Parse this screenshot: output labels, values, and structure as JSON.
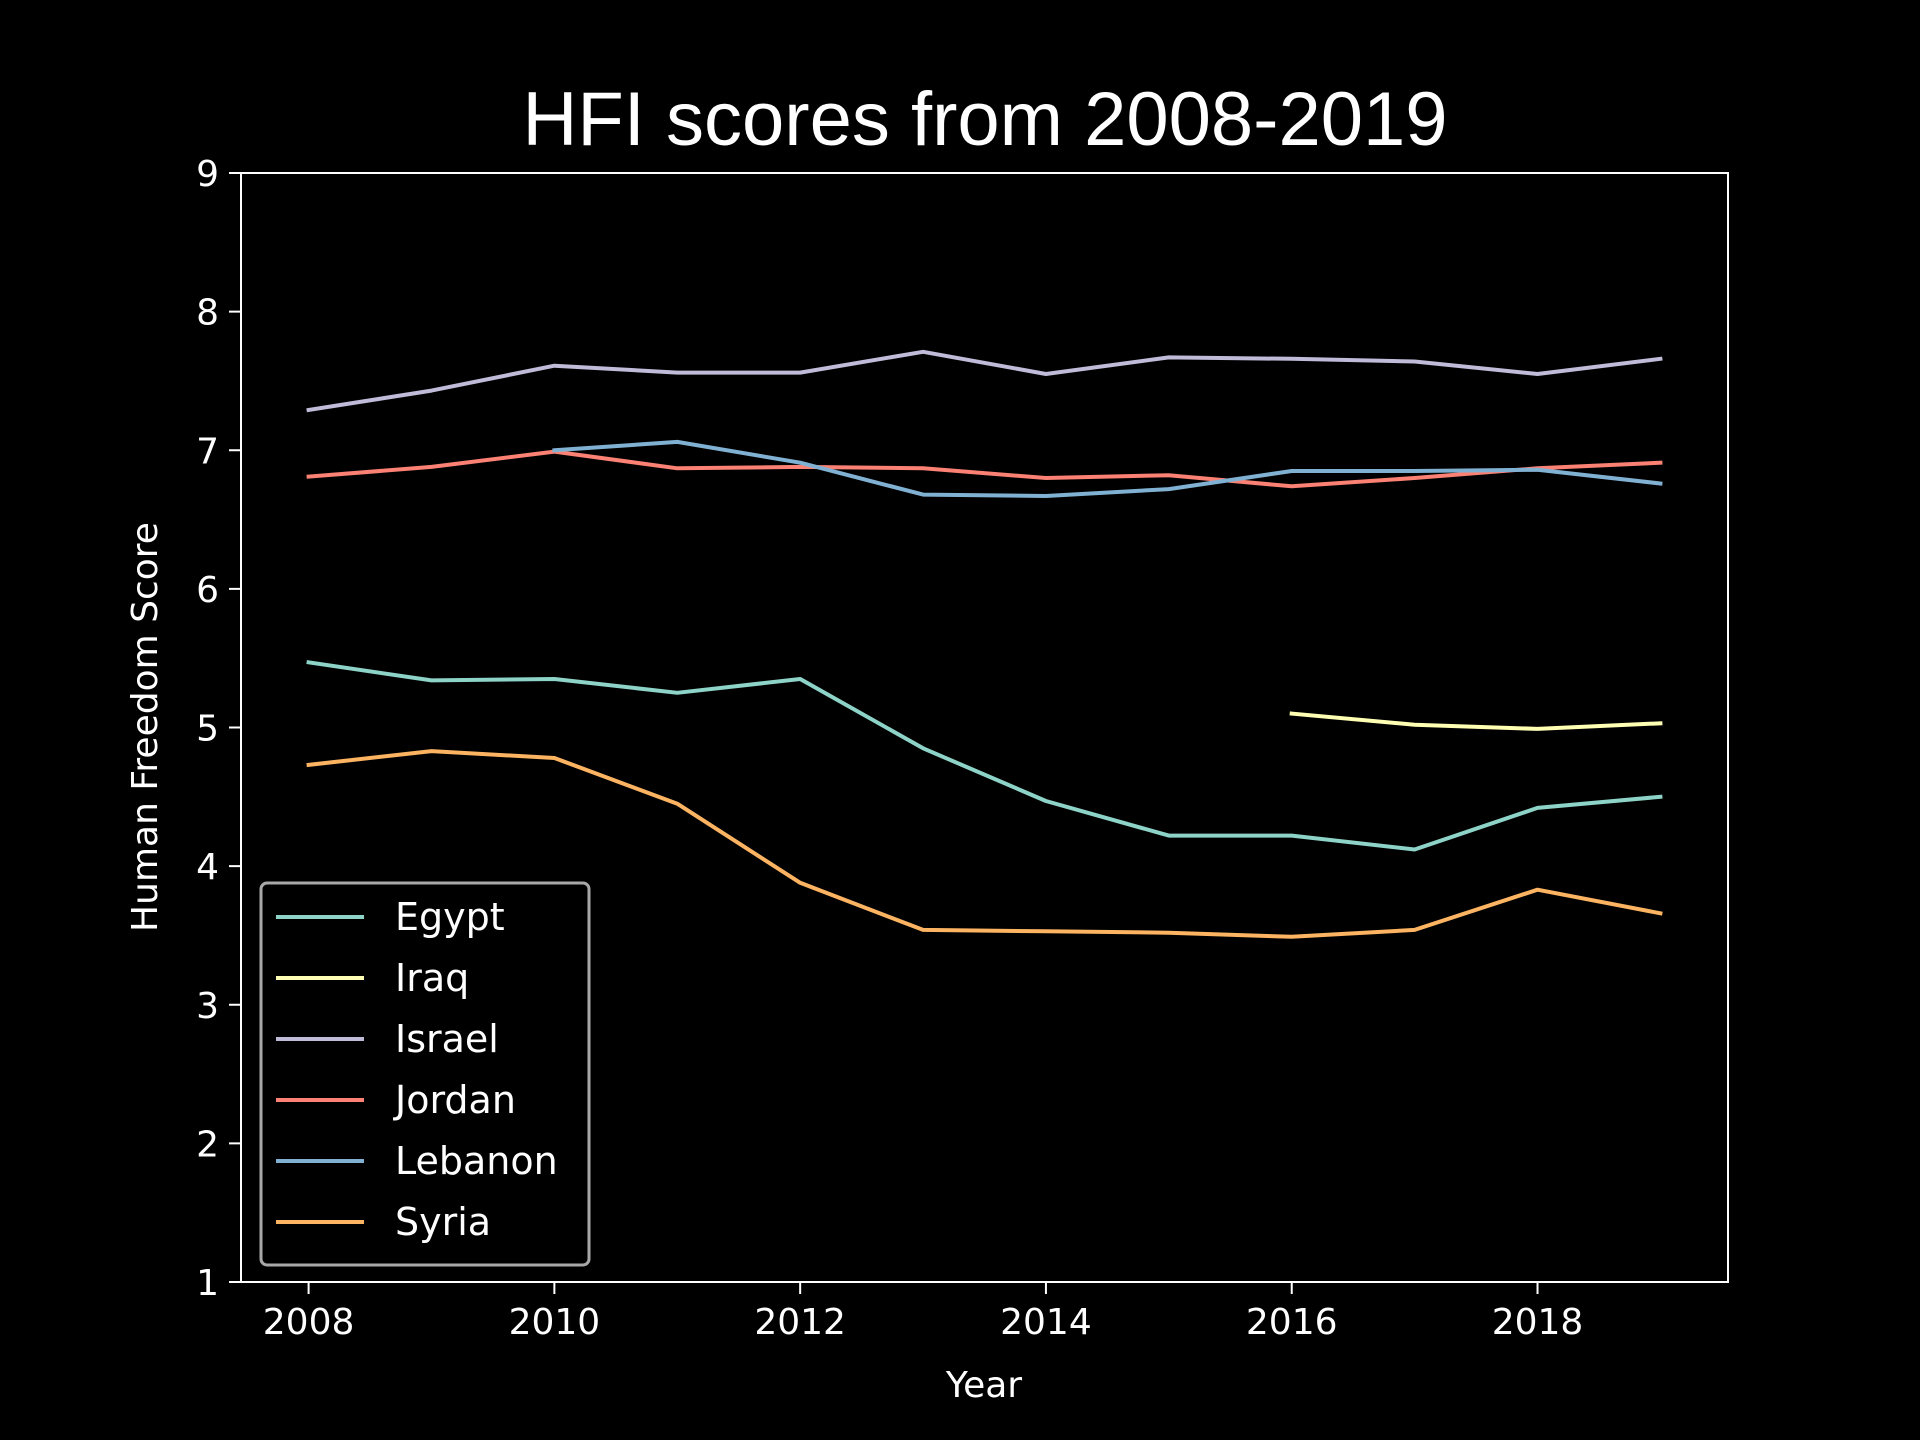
{
  "chart_data": {
    "type": "line",
    "title": "HFI scores from 2008-2019",
    "xlabel": "Year",
    "ylabel": "Human Freedom Score",
    "xlim": [
      2007.45,
      2019.55
    ],
    "ylim": [
      1,
      9
    ],
    "xticks": [
      2008,
      2010,
      2012,
      2014,
      2016,
      2018
    ],
    "yticks": [
      1,
      2,
      3,
      4,
      5,
      6,
      7,
      8,
      9
    ],
    "grid": false,
    "legend_position": "lower-left",
    "series": [
      {
        "name": "Egypt",
        "color": "#8dd3c7",
        "x": [
          2008,
          2009,
          2010,
          2011,
          2012,
          2013,
          2014,
          2015,
          2016,
          2017,
          2018,
          2019
        ],
        "y": [
          5.47,
          5.34,
          5.35,
          5.25,
          5.35,
          4.85,
          4.47,
          4.22,
          4.22,
          4.12,
          4.42,
          4.5
        ]
      },
      {
        "name": "Iraq",
        "color": "#feffb3",
        "x": [
          2016,
          2017,
          2018,
          2019
        ],
        "y": [
          5.1,
          5.02,
          4.99,
          5.03
        ]
      },
      {
        "name": "Israel",
        "color": "#bfbbd9",
        "x": [
          2008,
          2009,
          2010,
          2011,
          2012,
          2013,
          2014,
          2015,
          2016,
          2017,
          2018,
          2019
        ],
        "y": [
          7.29,
          7.43,
          7.61,
          7.56,
          7.56,
          7.71,
          7.55,
          7.67,
          7.66,
          7.64,
          7.55,
          7.66
        ]
      },
      {
        "name": "Jordan",
        "color": "#fa8174",
        "x": [
          2008,
          2009,
          2010,
          2011,
          2012,
          2013,
          2014,
          2015,
          2016,
          2017,
          2018,
          2019
        ],
        "y": [
          6.81,
          6.88,
          6.99,
          6.87,
          6.88,
          6.87,
          6.8,
          6.82,
          6.74,
          6.8,
          6.87,
          6.91
        ]
      },
      {
        "name": "Lebanon",
        "color": "#81b1d2",
        "x": [
          2010,
          2011,
          2012,
          2013,
          2014,
          2015,
          2016,
          2017,
          2018,
          2019
        ],
        "y": [
          7.0,
          7.06,
          6.91,
          6.68,
          6.67,
          6.72,
          6.85,
          6.85,
          6.86,
          6.76
        ]
      },
      {
        "name": "Syria",
        "color": "#fdb462",
        "x": [
          2008,
          2009,
          2010,
          2011,
          2012,
          2013,
          2014,
          2015,
          2016,
          2017,
          2018,
          2019
        ],
        "y": [
          4.73,
          4.83,
          4.78,
          4.45,
          3.88,
          3.54,
          3.53,
          3.52,
          3.49,
          3.54,
          3.83,
          3.66
        ]
      }
    ]
  }
}
